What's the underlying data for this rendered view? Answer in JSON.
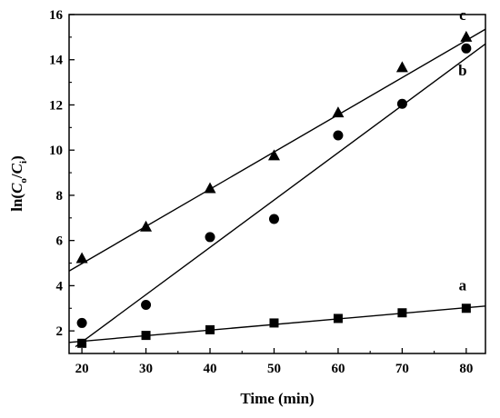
{
  "chart_data": {
    "type": "scatter",
    "xlabel": "Time (min)",
    "ylabel": {
      "prefix": "ln(",
      "c": "C",
      "o": "o",
      "slash": "/",
      "c2": "C",
      "i": "i",
      "suffix": ")"
    },
    "xlim": [
      18,
      83
    ],
    "ylim": [
      1,
      16
    ],
    "xticks": [
      20,
      30,
      40,
      50,
      60,
      70,
      80
    ],
    "yticks": [
      2,
      4,
      6,
      8,
      10,
      12,
      14,
      16
    ],
    "grid": false,
    "series": [
      {
        "name": "a",
        "marker": "square",
        "x": [
          20,
          30,
          40,
          50,
          60,
          70,
          80
        ],
        "y": [
          1.45,
          1.8,
          2.05,
          2.35,
          2.55,
          2.8,
          3.0
        ],
        "fit": {
          "x": [
            18,
            83
          ],
          "y": [
            1.49,
            3.1
          ]
        }
      },
      {
        "name": "b",
        "marker": "circle",
        "x": [
          20,
          30,
          40,
          50,
          60,
          70,
          80
        ],
        "y": [
          2.35,
          3.15,
          6.15,
          6.95,
          10.65,
          12.05,
          14.5
        ],
        "fit": {
          "x": [
            19,
            83
          ],
          "y": [
            1.3,
            14.7
          ]
        }
      },
      {
        "name": "c",
        "marker": "triangle",
        "x": [
          20,
          30,
          40,
          50,
          60,
          70,
          80
        ],
        "y": [
          5.2,
          6.6,
          8.3,
          9.75,
          11.65,
          13.65,
          15.0
        ],
        "fit": {
          "x": [
            18,
            83
          ],
          "y": [
            4.65,
            15.35
          ]
        }
      }
    ],
    "series_label_positions": [
      {
        "name": "a",
        "x": 80,
        "y": 4.0
      },
      {
        "name": "b",
        "x": 80,
        "y": 13.5
      },
      {
        "name": "c",
        "x": 80,
        "y": 15.95
      }
    ]
  }
}
